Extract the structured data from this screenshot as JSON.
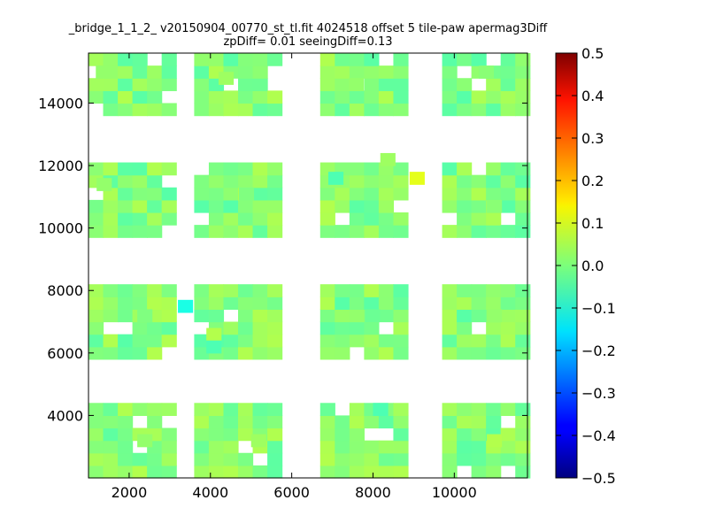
{
  "chart_data": {
    "type": "heatmap",
    "title_line1": "_bridge_1_1_2_ v20150904_00770_st_tl.fit 4024518 offset 5 tile-paw apermag3Diff",
    "title_line2": "zpDiff= 0.01 seeingDiff=0.13",
    "xlabel": "",
    "ylabel": "",
    "xlim": [
      1000,
      11800
    ],
    "ylim": [
      2000,
      15600
    ],
    "x_ticks": [
      2000,
      4000,
      6000,
      8000,
      10000
    ],
    "x_tick_labels": [
      "2000",
      "4000",
      "6000",
      "8000",
      "10000"
    ],
    "y_ticks": [
      4000,
      6000,
      8000,
      10000,
      12000,
      14000
    ],
    "y_tick_labels": [
      "4000",
      "6000",
      "8000",
      "10000",
      "12000",
      "14000"
    ],
    "colorbar": {
      "min": -0.5,
      "max": 0.5,
      "ticks": [
        0.5,
        0.4,
        0.3,
        0.2,
        0.1,
        0.0,
        -0.1,
        -0.2,
        -0.3,
        -0.4,
        -0.5
      ],
      "tick_labels": [
        "0.5",
        "0.4",
        "0.3",
        "0.2",
        "0.1",
        "0.0",
        "−0.1",
        "−0.2",
        "−0.3",
        "−0.4",
        "−0.5"
      ],
      "colormap": "jet"
    },
    "cell_size": [
      360,
      400
    ],
    "grid": false,
    "column_groups": [
      {
        "x0": 1000,
        "cols": 6
      },
      {
        "x0": 3600,
        "cols": 6
      },
      {
        "x0": 6700,
        "cols": 6
      },
      {
        "x0": 9700,
        "cols": 6
      }
    ],
    "row_groups": [
      {
        "y0": 2000,
        "rows": 6
      },
      {
        "y0": 5800,
        "rows": 6
      },
      {
        "y0": 9700,
        "rows": 6
      },
      {
        "y0": 13600,
        "rows": 5
      }
    ],
    "value_range_observed": [
      -0.1,
      0.1
    ],
    "cells_approx": [
      {
        "x": 1180,
        "y": 14800,
        "value": 0.02
      },
      {
        "x": 4200,
        "y": 14600,
        "value": 0.03
      },
      {
        "x": 7400,
        "y": 14400,
        "value": 0.02
      },
      {
        "x": 10600,
        "y": 14800,
        "value": 0.01
      },
      {
        "x": 1200,
        "y": 11200,
        "value": 0.02
      },
      {
        "x": 4700,
        "y": 10900,
        "value": 0.0
      },
      {
        "x": 6900,
        "y": 11400,
        "value": -0.05
      },
      {
        "x": 8180,
        "y": 12000,
        "value": 0.03
      },
      {
        "x": 8900,
        "y": 11400,
        "value": 0.1
      },
      {
        "x": 10800,
        "y": 10500,
        "value": 0.01
      },
      {
        "x": 3200,
        "y": 7300,
        "value": -0.1
      },
      {
        "x": 2200,
        "y": 7000,
        "value": 0.0
      },
      {
        "x": 3900,
        "y": 6400,
        "value": 0.05
      },
      {
        "x": 3900,
        "y": 6000,
        "value": -0.05
      },
      {
        "x": 7800,
        "y": 7000,
        "value": -0.02
      },
      {
        "x": 10800,
        "y": 7000,
        "value": 0.02
      },
      {
        "x": 8000,
        "y": 4000,
        "value": -0.05
      },
      {
        "x": 2200,
        "y": 3000,
        "value": 0.02
      },
      {
        "x": 5000,
        "y": 3000,
        "value": 0.03
      },
      {
        "x": 10800,
        "y": 3000,
        "value": 0.05
      }
    ]
  }
}
